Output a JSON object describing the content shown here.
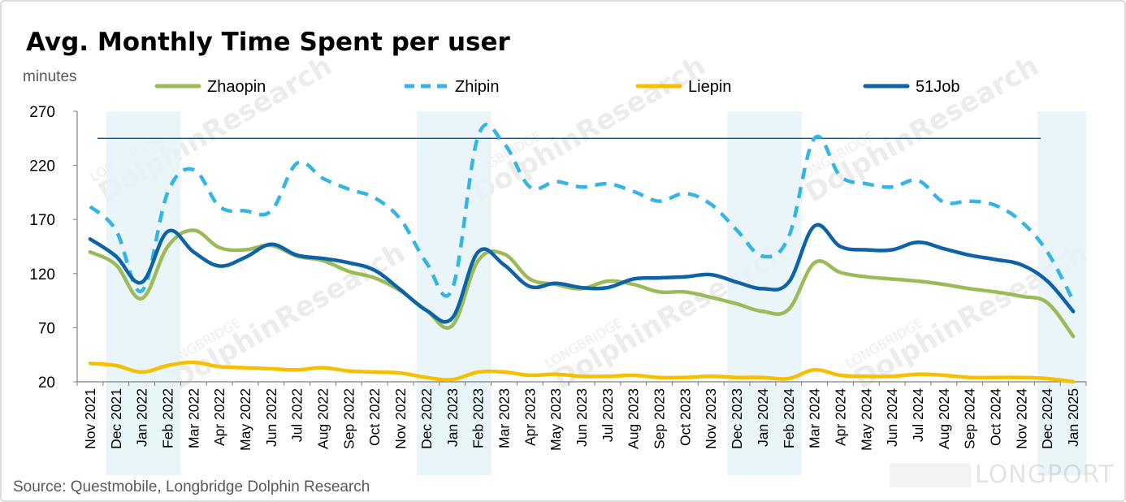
{
  "chart_data": {
    "type": "line",
    "title": "Avg. Monthly Time Spent per user",
    "ylabel": "minutes",
    "xlabel": "",
    "ylim": [
      20,
      270
    ],
    "yticks": [
      "270",
      "220",
      "170",
      "120",
      "70",
      "20"
    ],
    "ytick_values": [
      270,
      220,
      170,
      120,
      70,
      20
    ],
    "categories": [
      "Nov 2021",
      "Dec 2021",
      "Jan 2022",
      "Feb 2022",
      "Mar 2022",
      "Apr 2022",
      "May 2022",
      "Jun 2022",
      "Jul 2022",
      "Aug 2022",
      "Sep 2022",
      "Oct 2022",
      "Nov 2022",
      "Dec 2022",
      "Jan 2023",
      "Feb 2023",
      "Mar 2023",
      "Apr 2023",
      "May 2023",
      "Jun 2023",
      "Jul 2023",
      "Aug 2023",
      "Sep 2023",
      "Oct 2023",
      "Nov 2023",
      "Dec 2023",
      "Jan 2024",
      "Feb 2024",
      "Mar 2024",
      "Apr 2024",
      "May 2024",
      "Jun 2024",
      "Jul 2024",
      "Aug 2024",
      "Sep 2024",
      "Oct 2024",
      "Nov 2024",
      "Dec 2024",
      "Jan 2025"
    ],
    "series": [
      {
        "name": "Zhaopin",
        "color": "#9bbb59",
        "dash": false,
        "values": [
          140,
          128,
          97,
          145,
          160,
          144,
          142,
          146,
          136,
          132,
          122,
          116,
          104,
          86,
          72,
          132,
          138,
          115,
          110,
          106,
          113,
          110,
          103,
          103,
          98,
          92,
          85,
          87,
          130,
          121,
          117,
          115,
          113,
          110,
          106,
          103,
          99,
          93,
          62
        ]
      },
      {
        "name": "Zhipin",
        "color": "#35b5e5",
        "dash": true,
        "values": [
          182,
          160,
          104,
          195,
          216,
          182,
          178,
          178,
          222,
          208,
          198,
          190,
          170,
          130,
          106,
          247,
          240,
          200,
          205,
          200,
          203,
          196,
          187,
          194,
          184,
          160,
          136,
          154,
          245,
          210,
          203,
          200,
          206,
          186,
          187,
          183,
          168,
          140,
          95
        ]
      },
      {
        "name": "Liepin",
        "color": "#f5c000",
        "dash": false,
        "values": [
          37,
          35,
          29,
          35,
          38,
          34,
          33,
          32,
          31,
          33,
          30,
          29,
          28,
          24,
          22,
          29,
          29,
          26,
          27,
          25,
          25,
          26,
          24,
          24,
          25,
          24,
          24,
          23,
          31,
          26,
          25,
          25,
          27,
          26,
          24,
          24,
          24,
          23,
          20
        ]
      },
      {
        "name": "51Job",
        "color": "#0e62a8",
        "dash": false,
        "values": [
          152,
          136,
          112,
          159,
          140,
          127,
          135,
          147,
          137,
          134,
          130,
          123,
          105,
          86,
          79,
          140,
          128,
          108,
          111,
          107,
          107,
          115,
          116,
          117,
          119,
          112,
          106,
          112,
          164,
          145,
          142,
          142,
          149,
          143,
          137,
          133,
          128,
          113,
          85
        ]
      }
    ],
    "reference_line": 245,
    "shaded_periods": [
      [
        "Dec 2021",
        "Feb 2022"
      ],
      [
        "Dec 2022",
        "Feb 2023"
      ],
      [
        "Dec 2023",
        "Feb 2024"
      ],
      [
        "Dec 2024",
        "Jan 2025"
      ]
    ],
    "legend_position": "top"
  },
  "source": "Source: Questmobile, Longbridge Dolphin Research",
  "watermark": {
    "brand": "LONGBRIDGE",
    "name": "DolphinResearch",
    "logo": "LONGPORT"
  },
  "colors": {
    "shade": "#e6f3f8",
    "axis": "#7f7f7f",
    "refline": "#1f4e79",
    "frame": "#d0d0d0"
  }
}
